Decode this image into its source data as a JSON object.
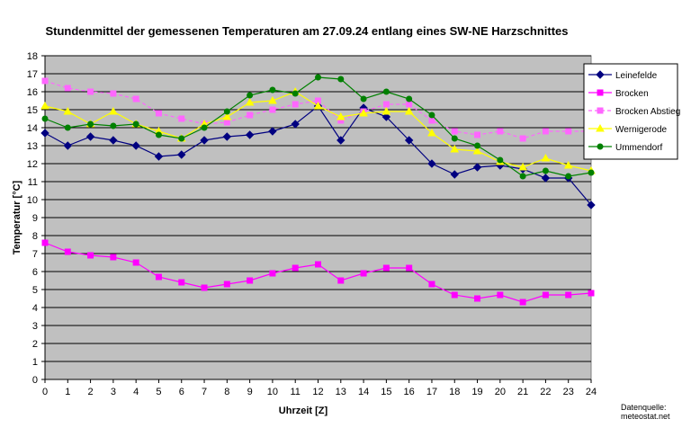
{
  "chart_data": {
    "type": "line",
    "title": "Stundenmittel der gemessenen Temperaturen am 27.09.24 entlang eines SW-NE Harzschnittes",
    "xlabel": "Uhrzeit [Z]",
    "ylabel": "Temperatur [°C]",
    "x": [
      0,
      1,
      2,
      3,
      4,
      5,
      6,
      7,
      8,
      9,
      10,
      11,
      12,
      13,
      14,
      15,
      16,
      17,
      18,
      19,
      20,
      21,
      22,
      23,
      24
    ],
    "xlim": [
      0,
      24
    ],
    "ylim": [
      0,
      18
    ],
    "yticks": [
      0,
      1,
      2,
      3,
      4,
      5,
      6,
      7,
      8,
      9,
      10,
      11,
      12,
      13,
      14,
      15,
      16,
      17,
      18
    ],
    "grid": "horizontal",
    "legend_position": "right",
    "background_color": "#c0c0c0",
    "series": [
      {
        "name": "Leinefelde",
        "color": "#000080",
        "marker": "diamond",
        "dashed": false,
        "values": [
          13.7,
          13.0,
          13.5,
          13.3,
          13.0,
          12.4,
          12.5,
          13.3,
          13.5,
          13.6,
          13.8,
          14.2,
          15.2,
          13.3,
          15.1,
          14.6,
          13.3,
          12.0,
          11.4,
          11.8,
          11.9,
          11.7,
          11.2,
          11.2,
          9.7
        ]
      },
      {
        "name": "Brocken",
        "color": "#ff00ff",
        "marker": "square",
        "dashed": false,
        "values": [
          7.6,
          7.1,
          6.9,
          6.8,
          6.5,
          5.7,
          5.4,
          5.1,
          5.3,
          5.5,
          5.9,
          6.2,
          6.4,
          5.5,
          5.9,
          6.2,
          6.2,
          5.3,
          4.7,
          4.5,
          4.7,
          4.3,
          4.7,
          4.7,
          4.8
        ]
      },
      {
        "name": "Brocken Abstieg",
        "color": "#ff66ff",
        "marker": "square",
        "dashed": true,
        "values": [
          16.6,
          16.2,
          16.0,
          15.9,
          15.6,
          14.8,
          14.5,
          14.2,
          14.3,
          14.7,
          15.0,
          15.3,
          15.5,
          14.4,
          14.9,
          15.3,
          15.3,
          14.4,
          13.8,
          13.6,
          13.8,
          13.4,
          13.8,
          13.8,
          13.8
        ]
      },
      {
        "name": "Wernigerode",
        "color": "#ffff00",
        "marker": "triangle",
        "dashed": false,
        "values": [
          15.2,
          14.9,
          14.2,
          14.9,
          14.2,
          13.8,
          13.4,
          14.2,
          14.6,
          15.4,
          15.5,
          16.0,
          15.2,
          14.6,
          14.8,
          14.9,
          14.9,
          13.7,
          12.8,
          12.7,
          12.1,
          11.8,
          12.3,
          11.9,
          11.6
        ]
      },
      {
        "name": "Ummendorf",
        "color": "#008000",
        "marker": "circle",
        "dashed": false,
        "values": [
          14.5,
          14.0,
          14.2,
          14.1,
          14.2,
          13.6,
          13.4,
          14.0,
          14.9,
          15.8,
          16.1,
          15.9,
          16.8,
          16.7,
          15.6,
          16.0,
          15.6,
          14.7,
          13.4,
          13.0,
          12.2,
          11.3,
          11.6,
          11.3,
          11.5
        ]
      }
    ],
    "source_note": [
      "Datenquelle:",
      "meteostat.net"
    ]
  }
}
